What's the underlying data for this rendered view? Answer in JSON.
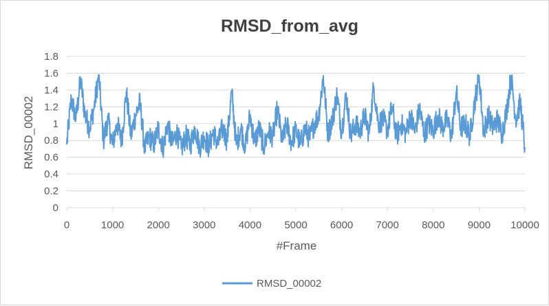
{
  "chart_data": {
    "type": "line",
    "title": "RMSD_from_avg",
    "xlabel": "#Frame",
    "ylabel": "RMSD_00002",
    "xlim": [
      0,
      10000
    ],
    "ylim": [
      0,
      1.8
    ],
    "xticks": [
      0,
      1000,
      2000,
      3000,
      4000,
      5000,
      6000,
      7000,
      8000,
      9000,
      10000
    ],
    "yticks": [
      0,
      0.2,
      0.4,
      0.6,
      0.8,
      1,
      1.2,
      1.4,
      1.6,
      1.8
    ],
    "grid": "horizontal",
    "legend": "bottom",
    "series": [
      {
        "name": "RMSD_00002",
        "color": "#5b9bd5",
        "x": [
          0,
          100,
          200,
          300,
          400,
          500,
          600,
          700,
          800,
          900,
          1000,
          1100,
          1200,
          1300,
          1400,
          1500,
          1600,
          1700,
          1800,
          1900,
          2000,
          2100,
          2200,
          2300,
          2400,
          2500,
          2600,
          2700,
          2800,
          2900,
          3000,
          3100,
          3200,
          3300,
          3400,
          3500,
          3600,
          3700,
          3800,
          3900,
          4000,
          4100,
          4200,
          4300,
          4400,
          4500,
          4600,
          4700,
          4800,
          4900,
          5000,
          5100,
          5200,
          5300,
          5400,
          5500,
          5600,
          5700,
          5800,
          5900,
          6000,
          6100,
          6200,
          6300,
          6400,
          6500,
          6600,
          6700,
          6800,
          6900,
          7000,
          7100,
          7200,
          7300,
          7400,
          7500,
          7600,
          7700,
          7800,
          7900,
          8000,
          8100,
          8200,
          8300,
          8400,
          8500,
          8600,
          8700,
          8800,
          8900,
          9000,
          9100,
          9200,
          9300,
          9400,
          9500,
          9600,
          9700,
          9800,
          9900,
          10000
        ],
        "values": [
          0.75,
          1.3,
          1.05,
          1.52,
          1.1,
          0.95,
          1.2,
          1.58,
          0.8,
          1.05,
          0.75,
          1.0,
          0.8,
          1.38,
          0.85,
          1.1,
          1.25,
          0.7,
          0.85,
          0.75,
          0.95,
          0.7,
          1.0,
          0.75,
          0.9,
          0.7,
          0.85,
          0.75,
          0.95,
          0.72,
          0.85,
          0.72,
          0.9,
          0.75,
          0.95,
          0.8,
          1.38,
          0.75,
          0.95,
          0.72,
          1.1,
          0.78,
          0.95,
          0.72,
          0.9,
          0.85,
          1.18,
          0.78,
          1.0,
          0.78,
          0.92,
          0.75,
          0.95,
          0.82,
          1.0,
          1.1,
          1.57,
          0.88,
          1.05,
          1.35,
          0.9,
          1.35,
          0.85,
          1.0,
          0.9,
          1.1,
          0.88,
          1.45,
          1.0,
          1.05,
          0.92,
          1.2,
          0.85,
          1.0,
          0.88,
          1.1,
          0.9,
          1.18,
          0.88,
          1.0,
          0.92,
          1.1,
          0.95,
          1.05,
          0.85,
          1.38,
          0.95,
          1.0,
          0.85,
          1.25,
          1.57,
          0.9,
          1.1,
          0.95,
          1.05,
          0.88,
          1.15,
          1.57,
          1.05,
          1.25,
          0.72
        ]
      }
    ]
  }
}
